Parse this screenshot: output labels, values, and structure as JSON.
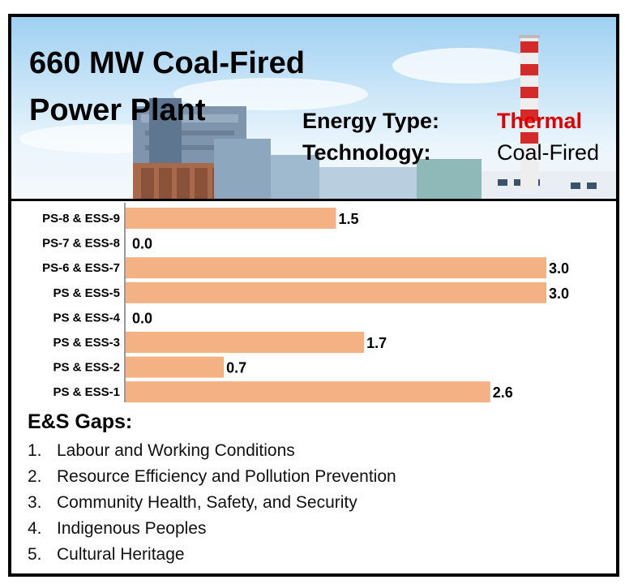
{
  "banner": {
    "title_line1": "660 MW Coal-Fired",
    "title_line2": "Power Plant",
    "energy_type_label": "Energy Type:",
    "energy_type_value": "Thermal",
    "technology_label": "Technology:",
    "technology_value": "Coal-Fired",
    "accent_color": "#e00000"
  },
  "chart_data": {
    "type": "bar",
    "orientation": "horizontal",
    "categories": [
      "PS-8 & ESS-9",
      "PS-7 & ESS-8",
      "PS-6 & ESS-7",
      "PS & ESS-5",
      "PS & ESS-4",
      "PS & ESS-3",
      "PS & ESS-2",
      "PS & ESS-1"
    ],
    "values": [
      1.5,
      0.0,
      3.0,
      3.0,
      0.0,
      1.7,
      0.7,
      2.6
    ],
    "data_labels": [
      "1.5",
      "0.0",
      "3.0",
      "3.0",
      "0.0",
      "1.7",
      "0.7",
      "2.6"
    ],
    "xlim": [
      0,
      3.0
    ],
    "bar_color": "#f4b183",
    "grid": false,
    "legend": "none"
  },
  "gaps": {
    "title": "E&S Gaps:",
    "items": [
      {
        "num": "1.",
        "text": "Labour and Working Conditions"
      },
      {
        "num": "2.",
        "text": "Resource Efficiency and Pollution Prevention"
      },
      {
        "num": "3.",
        "text": "Community Health, Safety, and Security"
      },
      {
        "num": "4.",
        "text": "Indigenous Peoples"
      },
      {
        "num": "5.",
        "text": "Cultural Heritage"
      }
    ]
  }
}
